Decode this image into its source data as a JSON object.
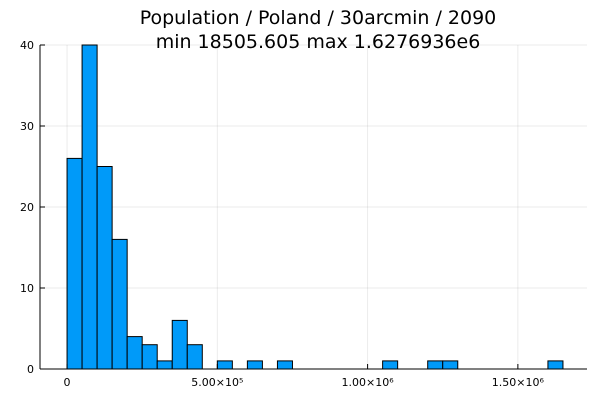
{
  "chart_data": {
    "type": "bar",
    "title": "Population / Poland / 30arcmin / 2090",
    "subtitle": "min 18505.605  max 1.6276936e6",
    "xlabel": "",
    "ylabel": "",
    "bin_width": 50000,
    "bins": [
      {
        "start": 0,
        "end": 50000,
        "count": 26
      },
      {
        "start": 50000,
        "end": 100000,
        "count": 40
      },
      {
        "start": 100000,
        "end": 150000,
        "count": 25
      },
      {
        "start": 150000,
        "end": 200000,
        "count": 16
      },
      {
        "start": 200000,
        "end": 250000,
        "count": 4
      },
      {
        "start": 250000,
        "end": 300000,
        "count": 3
      },
      {
        "start": 300000,
        "end": 350000,
        "count": 1
      },
      {
        "start": 350000,
        "end": 400000,
        "count": 6
      },
      {
        "start": 400000,
        "end": 450000,
        "count": 3
      },
      {
        "start": 500000,
        "end": 550000,
        "count": 1
      },
      {
        "start": 600000,
        "end": 650000,
        "count": 1
      },
      {
        "start": 700000,
        "end": 750000,
        "count": 1
      },
      {
        "start": 1050000,
        "end": 1100000,
        "count": 1
      },
      {
        "start": 1200000,
        "end": 1250000,
        "count": 1
      },
      {
        "start": 1250000,
        "end": 1300000,
        "count": 1
      },
      {
        "start": 1600000,
        "end": 1650000,
        "count": 1
      }
    ],
    "xlim": [
      -90000,
      1730000
    ],
    "ylim": [
      0,
      40
    ],
    "x_ticks": [
      {
        "value": 0,
        "label": "0"
      },
      {
        "value": 500000,
        "label": "5.00×10⁵"
      },
      {
        "value": 1000000,
        "label": "1.00×10⁶"
      },
      {
        "value": 1500000,
        "label": "1.50×10⁶"
      }
    ],
    "y_ticks": [
      {
        "value": 0,
        "label": "0"
      },
      {
        "value": 10,
        "label": "10"
      },
      {
        "value": 20,
        "label": "20"
      },
      {
        "value": 30,
        "label": "30"
      },
      {
        "value": 40,
        "label": "40"
      }
    ],
    "grid": true,
    "legend": "none",
    "bar_color": "#009af9",
    "edge_color": "#000000"
  }
}
